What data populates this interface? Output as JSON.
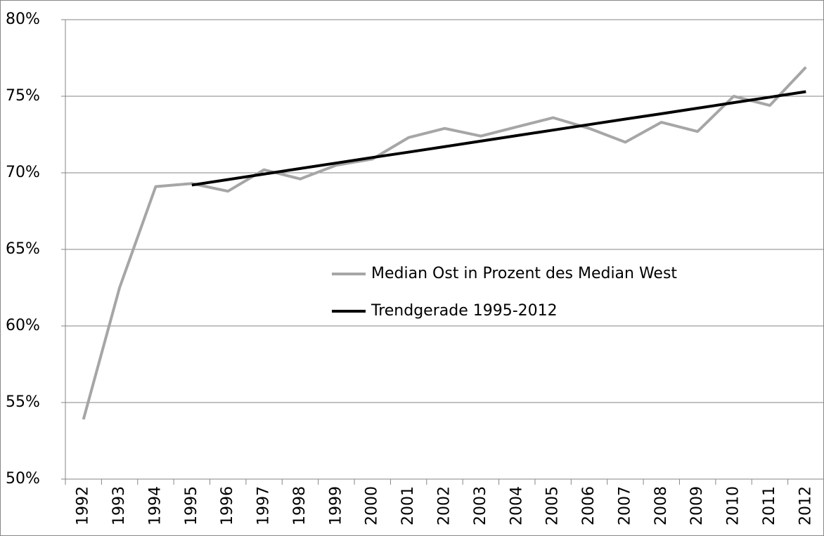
{
  "chart_data": {
    "type": "line",
    "categories": [
      "1992",
      "1993",
      "1994",
      "1995",
      "1996",
      "1997",
      "1998",
      "1999",
      "2000",
      "2001",
      "2002",
      "2003",
      "2004",
      "2005",
      "2006",
      "2007",
      "2008",
      "2009",
      "2010",
      "2011",
      "2012"
    ],
    "series": [
      {
        "name": "Median Ost in Prozent des Median West",
        "color": "#a6a6a6",
        "values": [
          53.9,
          62.5,
          69.1,
          69.3,
          68.8,
          70.2,
          69.6,
          70.5,
          70.9,
          72.3,
          72.9,
          72.4,
          73.0,
          73.6,
          72.9,
          72.0,
          73.3,
          72.7,
          75.0,
          74.4,
          76.9
        ]
      },
      {
        "name": "Trendgerade 1995-2012",
        "color": "#000000",
        "values": [
          null,
          null,
          null,
          69.2,
          69.56,
          69.92,
          70.28,
          70.64,
          71.0,
          71.35,
          71.71,
          72.07,
          72.43,
          72.79,
          73.15,
          73.51,
          73.86,
          74.22,
          74.58,
          74.94,
          75.3
        ]
      }
    ],
    "ylim": [
      50,
      80
    ],
    "yticks": [
      {
        "value": 50,
        "label": "50%"
      },
      {
        "value": 55,
        "label": "55%"
      },
      {
        "value": 60,
        "label": "60%"
      },
      {
        "value": 65,
        "label": "65%"
      },
      {
        "value": 70,
        "label": "70%"
      },
      {
        "value": 75,
        "label": "75%"
      },
      {
        "value": 80,
        "label": "80%"
      }
    ],
    "grid": true,
    "legend": "center"
  }
}
